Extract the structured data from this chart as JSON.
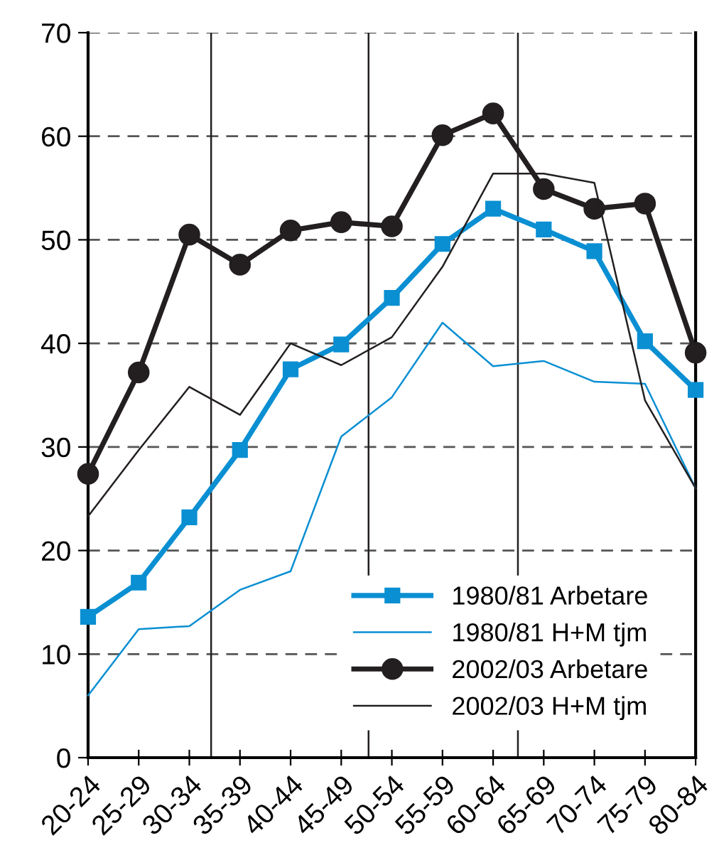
{
  "chart_data": {
    "type": "line",
    "categories": [
      "20-24",
      "25-29",
      "30-34",
      "35-39",
      "40-44",
      "45-49",
      "50-54",
      "55-59",
      "60-64",
      "65-69",
      "70-74",
      "75-79",
      "80-84"
    ],
    "series": [
      {
        "name": "1980/81 Arbetare",
        "color": "#0a8fd2",
        "marker": "square",
        "values": [
          13.6,
          16.9,
          23.2,
          29.7,
          37.5,
          39.9,
          44.4,
          49.6,
          53.0,
          51.0,
          48.9,
          40.2,
          35.5
        ]
      },
      {
        "name": "1980/81 H+M tjm",
        "color": "#0a8fd2",
        "marker": "none",
        "values": [
          6.0,
          12.4,
          12.7,
          16.2,
          18.0,
          31.0,
          34.8,
          42.0,
          37.8,
          38.3,
          36.3,
          36.1,
          26.0
        ]
      },
      {
        "name": "2002/03 Arbetare",
        "color": "#231f20",
        "marker": "circle",
        "values": [
          27.4,
          37.2,
          50.5,
          47.6,
          50.9,
          51.7,
          51.3,
          60.1,
          62.2,
          54.9,
          53.0,
          53.5,
          39.1
        ]
      },
      {
        "name": "2002/03 H+M tjm",
        "color": "#231f20",
        "marker": "none",
        "values": [
          23.3,
          29.7,
          35.8,
          33.1,
          40.0,
          37.9,
          40.6,
          47.4,
          56.4,
          56.4,
          55.5,
          34.5,
          26.0
        ]
      }
    ],
    "ylim": [
      0,
      70
    ],
    "yticks": [
      0,
      10,
      20,
      30,
      40,
      50,
      60,
      70
    ],
    "grid": "y",
    "legend": "bottom right"
  }
}
